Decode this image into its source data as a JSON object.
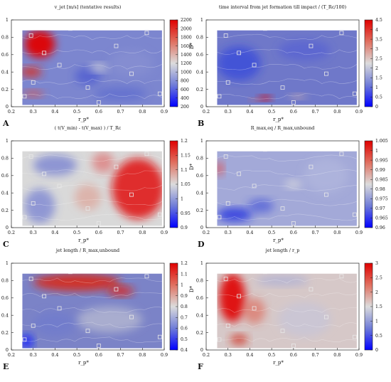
{
  "figure": {
    "panels": [
      {
        "letter": "A",
        "title": "v_jet [m/s] (tentative results)",
        "cb_ticks": [
          "2200",
          "2000",
          "1800",
          "1600",
          "1400",
          "1200",
          "1000",
          "800",
          "600",
          "400",
          "200"
        ]
      },
      {
        "letter": "B",
        "title": "time interval from jet formation till impact / (T_Rc/100)",
        "cb_ticks": [
          "4.5",
          "4",
          "3.5",
          "3",
          "2.5",
          "2",
          "1.5",
          "1",
          "0.5",
          "0"
        ]
      },
      {
        "letter": "C",
        "title": "( t(V_min) - t(V_max) ) / T_Rc",
        "cb_ticks": [
          "1.2",
          "1.15",
          "1.1",
          "1.05",
          "1",
          "0.95",
          "0.9"
        ]
      },
      {
        "letter": "D",
        "title": "R_max,eq / R_max,unbound",
        "cb_ticks": [
          "1.005",
          "1",
          "0.995",
          "0.99",
          "0.985",
          "0.98",
          "0.975",
          "0.97",
          "0.965",
          "0.96"
        ]
      },
      {
        "letter": "E",
        "title": "jet length / R_max,unbound",
        "cb_ticks": [
          "1.2",
          "1.1",
          "1",
          "0.9",
          "0.8",
          "0.7",
          "0.6",
          "0.5",
          "0.4"
        ]
      },
      {
        "letter": "F",
        "title": "jet length / r_p",
        "cb_ticks": [
          "3",
          "2.5",
          "2",
          "1.5",
          "1",
          "0.5",
          "0"
        ]
      }
    ],
    "x_ticks": [
      "0.2",
      "0.3",
      "0.4",
      "0.5",
      "0.6",
      "0.7",
      "0.8",
      "0.9"
    ],
    "y_ticks": [
      "0",
      "0.2",
      "0.4",
      "0.6",
      "0.8",
      "1"
    ],
    "xlabel": "r_p*",
    "ylabel": "D*"
  },
  "chart_data": [
    {
      "type": "heatmap",
      "title": "v_jet [m/s] (tentative results)",
      "xlabel": "r_p*",
      "ylabel": "D*",
      "xlim": [
        0.2,
        0.9
      ],
      "ylim": [
        0,
        1
      ],
      "colorbar_range": [
        200,
        2200
      ],
      "colormap": "blue-white-red"
    },
    {
      "type": "heatmap",
      "title": "time interval from jet formation till impact / (T_Rc/100)",
      "xlabel": "r_p*",
      "ylabel": "D*",
      "xlim": [
        0.2,
        0.9
      ],
      "ylim": [
        0,
        1
      ],
      "colorbar_range": [
        0,
        4.5
      ],
      "colormap": "blue-white-red"
    },
    {
      "type": "heatmap",
      "title": "( t(V_min) - t(V_max) ) / T_Rc",
      "xlabel": "r_p*",
      "ylabel": "D*",
      "xlim": [
        0.2,
        0.9
      ],
      "ylim": [
        0,
        1
      ],
      "colorbar_range": [
        0.9,
        1.2
      ],
      "colormap": "blue-white-red"
    },
    {
      "type": "heatmap",
      "title": "R_max,eq / R_max,unbound",
      "xlabel": "r_p*",
      "ylabel": "D*",
      "xlim": [
        0.2,
        0.9
      ],
      "ylim": [
        0,
        1
      ],
      "colorbar_range": [
        0.96,
        1.005
      ],
      "colormap": "blue-white-red"
    },
    {
      "type": "heatmap",
      "title": "jet length / R_max,unbound",
      "xlabel": "r_p*",
      "ylabel": "D*",
      "xlim": [
        0.2,
        0.9
      ],
      "ylim": [
        0,
        1
      ],
      "colorbar_range": [
        0.4,
        1.2
      ],
      "colormap": "blue-white-red"
    },
    {
      "type": "heatmap",
      "title": "jet length / r_p",
      "xlabel": "r_p*",
      "ylabel": "D*",
      "xlim": [
        0.2,
        0.9
      ],
      "ylim": [
        0,
        1
      ],
      "colorbar_range": [
        0,
        3
      ],
      "colormap": "blue-white-red"
    }
  ]
}
